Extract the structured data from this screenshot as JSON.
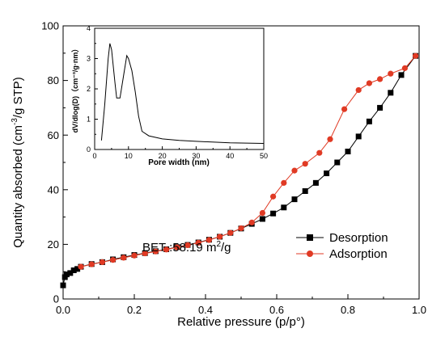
{
  "chart_data": [
    {
      "type": "line",
      "title": "",
      "xlabel": "Relative pressure (p/p°)",
      "ylabel_base": "Quantity absorbed (cm",
      "ylabel_sup": "-3",
      "ylabel_tail": "/g STP)",
      "xlim": [
        0.0,
        1.0
      ],
      "ylim": [
        0,
        100
      ],
      "x_ticks": [
        "0.0",
        "0.2",
        "0.4",
        "0.6",
        "0.8",
        "1.0"
      ],
      "y_ticks": [
        "0",
        "20",
        "40",
        "60",
        "80",
        "100"
      ],
      "annotation": {
        "prefix": "BET :58.19 m",
        "sup": "2",
        "suffix": "/g"
      },
      "legend_position": "bottom-right",
      "series": [
        {
          "name": "Desorption",
          "color": "#000000",
          "marker": "square",
          "points": [
            [
              0.0,
              5
            ],
            [
              0.005,
              8
            ],
            [
              0.01,
              9
            ],
            [
              0.02,
              9.5
            ],
            [
              0.03,
              10.5
            ],
            [
              0.04,
              11
            ],
            [
              0.05,
              11.8
            ],
            [
              0.08,
              12.8
            ],
            [
              0.11,
              13.5
            ],
            [
              0.14,
              14.5
            ],
            [
              0.17,
              15.3
            ],
            [
              0.2,
              16.1
            ],
            [
              0.23,
              16.8
            ],
            [
              0.26,
              17.5
            ],
            [
              0.29,
              18.2
            ],
            [
              0.32,
              19
            ],
            [
              0.35,
              19.8
            ],
            [
              0.38,
              20.7
            ],
            [
              0.41,
              21.7
            ],
            [
              0.44,
              22.8
            ],
            [
              0.47,
              24.2
            ],
            [
              0.5,
              25.8
            ],
            [
              0.53,
              27.5
            ],
            [
              0.56,
              29.3
            ],
            [
              0.59,
              31.3
            ],
            [
              0.62,
              33.5
            ],
            [
              0.65,
              36.5
            ],
            [
              0.68,
              39.5
            ],
            [
              0.71,
              42.5
            ],
            [
              0.74,
              46
            ],
            [
              0.77,
              50
            ],
            [
              0.8,
              54
            ],
            [
              0.83,
              59.5
            ],
            [
              0.86,
              65
            ],
            [
              0.89,
              70
            ],
            [
              0.92,
              75.5
            ],
            [
              0.95,
              82
            ],
            [
              0.99,
              89
            ]
          ]
        },
        {
          "name": "Adsorption",
          "color": "#e03a24",
          "marker": "circle",
          "points": [
            [
              0.05,
              11.8
            ],
            [
              0.08,
              12.7
            ],
            [
              0.11,
              13.5
            ],
            [
              0.14,
              14.3
            ],
            [
              0.17,
              15.1
            ],
            [
              0.2,
              15.9
            ],
            [
              0.23,
              16.7
            ],
            [
              0.26,
              17.4
            ],
            [
              0.29,
              18.1
            ],
            [
              0.32,
              18.9
            ],
            [
              0.35,
              19.7
            ],
            [
              0.38,
              20.6
            ],
            [
              0.41,
              21.6
            ],
            [
              0.44,
              22.8
            ],
            [
              0.47,
              24.2
            ],
            [
              0.5,
              25.9
            ],
            [
              0.53,
              28
            ],
            [
              0.56,
              31.5
            ],
            [
              0.59,
              37.5
            ],
            [
              0.62,
              42.5
            ],
            [
              0.65,
              47
            ],
            [
              0.68,
              49.5
            ],
            [
              0.72,
              53.5
            ],
            [
              0.75,
              58.5
            ],
            [
              0.79,
              69.5
            ],
            [
              0.83,
              76.5
            ],
            [
              0.86,
              79
            ],
            [
              0.89,
              80.5
            ],
            [
              0.92,
              82.5
            ],
            [
              0.96,
              84.5
            ],
            [
              0.99,
              89
            ]
          ]
        }
      ]
    },
    {
      "type": "line",
      "title": "",
      "xlabel": "Pore width (nm)",
      "ylabel": "dV/dlog(D)（cm⁻³/g·nm）",
      "xlim": [
        0,
        50
      ],
      "ylim": [
        0,
        4
      ],
      "x_ticks": [
        "0",
        "10",
        "20",
        "30",
        "40",
        "50"
      ],
      "y_ticks": [
        "0",
        "1",
        "2",
        "3",
        "4"
      ],
      "series": [
        {
          "color": "#000000",
          "points": [
            [
              2,
              0.3
            ],
            [
              3,
              1.5
            ],
            [
              4,
              3.0
            ],
            [
              4.5,
              3.5
            ],
            [
              5,
              3.3
            ],
            [
              6,
              2.2
            ],
            [
              6.5,
              1.7
            ],
            [
              7.5,
              1.7
            ],
            [
              8.5,
              2.4
            ],
            [
              9.5,
              3.1
            ],
            [
              10,
              3.0
            ],
            [
              11,
              2.6
            ],
            [
              12,
              1.9
            ],
            [
              13,
              1.1
            ],
            [
              14,
              0.6
            ],
            [
              16,
              0.45
            ],
            [
              20,
              0.35
            ],
            [
              25,
              0.3
            ],
            [
              30,
              0.27
            ],
            [
              40,
              0.22
            ],
            [
              50,
              0.2
            ]
          ]
        }
      ]
    }
  ]
}
